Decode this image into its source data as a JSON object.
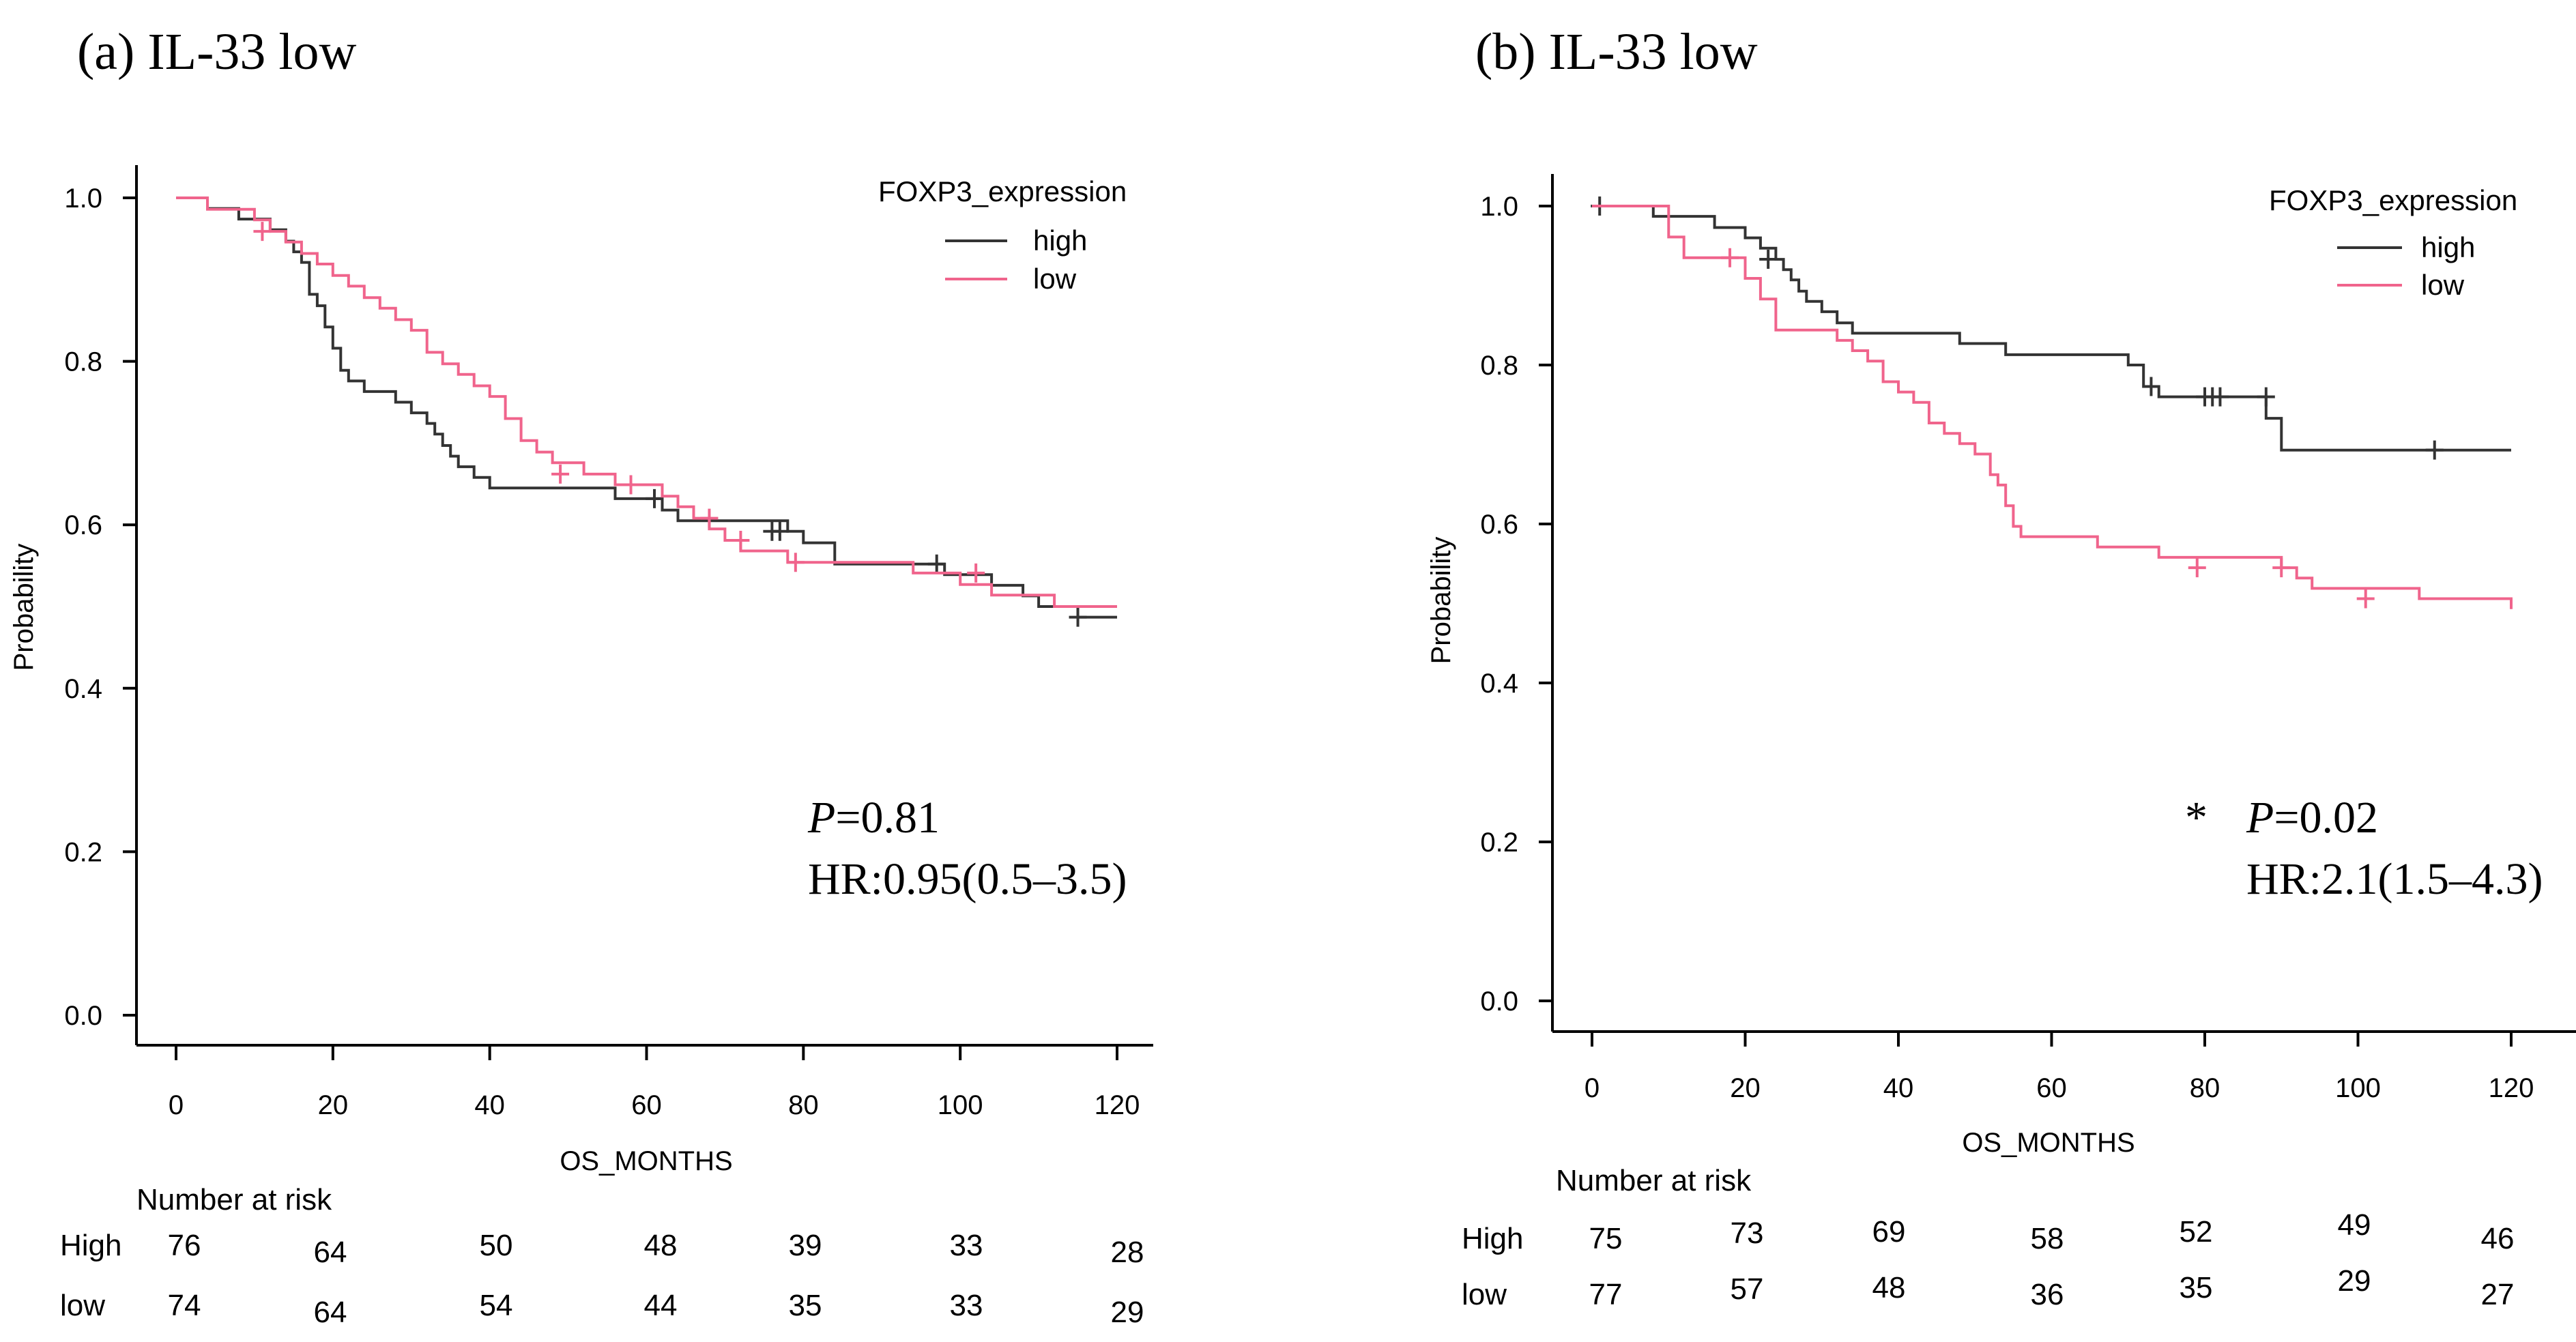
{
  "chart_data": [
    {
      "type": "line",
      "panel": "(a)",
      "title": "(a) IL-33 low",
      "xlabel": "OS_MONTHS",
      "ylabel": "Probability",
      "xlim": [
        0,
        120
      ],
      "ylim": [
        0,
        1.0
      ],
      "x_ticks": [
        "0",
        "20",
        "40",
        "60",
        "80",
        "100",
        "120"
      ],
      "y_ticks": [
        "0.0",
        "0.2",
        "0.4",
        "0.6",
        "0.8",
        "1.0"
      ],
      "legend": {
        "title": "FOXP3_expression",
        "position": "top-right",
        "entries": [
          "high",
          "low"
        ]
      },
      "colors": {
        "high": "#333333",
        "low": "#f0648c"
      },
      "series": [
        {
          "name": "high",
          "x": [
            0,
            4,
            8,
            12,
            14,
            15,
            16,
            17,
            18,
            19,
            20,
            21,
            22,
            24,
            28,
            30,
            32,
            33,
            34,
            35,
            36,
            38,
            40,
            44,
            48,
            56,
            62,
            64,
            76,
            78,
            80,
            84,
            97,
            98,
            104,
            108,
            110,
            115,
            120
          ],
          "y": [
            1.0,
            0.987,
            0.974,
            0.961,
            0.947,
            0.934,
            0.921,
            0.882,
            0.868,
            0.842,
            0.816,
            0.789,
            0.776,
            0.763,
            0.75,
            0.737,
            0.724,
            0.711,
            0.697,
            0.684,
            0.671,
            0.658,
            0.645,
            0.645,
            0.645,
            0.632,
            0.618,
            0.605,
            0.605,
            0.592,
            0.578,
            0.552,
            0.552,
            0.539,
            0.526,
            0.513,
            0.5,
            0.487,
            0.487
          ],
          "censor_x": [
            61,
            76,
            77,
            97,
            115
          ],
          "censor_y": [
            0.632,
            0.592,
            0.592,
            0.552,
            0.487
          ]
        },
        {
          "name": "low",
          "x": [
            0,
            4,
            10,
            12,
            14,
            16,
            18,
            20,
            22,
            24,
            26,
            28,
            30,
            32,
            34,
            36,
            38,
            40,
            42,
            44,
            46,
            48,
            52,
            56,
            60,
            62,
            64,
            66,
            68,
            70,
            72,
            74,
            78,
            82,
            90,
            94,
            100,
            104,
            108,
            112,
            120
          ],
          "y": [
            1.0,
            0.986,
            0.973,
            0.959,
            0.946,
            0.932,
            0.919,
            0.905,
            0.892,
            0.878,
            0.865,
            0.851,
            0.838,
            0.811,
            0.797,
            0.784,
            0.77,
            0.757,
            0.73,
            0.703,
            0.689,
            0.676,
            0.662,
            0.649,
            0.649,
            0.635,
            0.622,
            0.608,
            0.595,
            0.581,
            0.568,
            0.568,
            0.554,
            0.554,
            0.554,
            0.541,
            0.527,
            0.514,
            0.514,
            0.5,
            0.5
          ],
          "censor_x": [
            11,
            49,
            58,
            68,
            72,
            79,
            102
          ],
          "censor_y": [
            0.959,
            0.662,
            0.649,
            0.608,
            0.581,
            0.554,
            0.541
          ]
        }
      ],
      "annotation": {
        "p_label": "P",
        "p_value": "=0.81",
        "hr": "HR:0.95(0.5–3.5)"
      },
      "risk_table": {
        "title": "Number at risk",
        "rows": [
          {
            "label": "High",
            "values": [
              "76",
              "64",
              "50",
              "48",
              "39",
              "33",
              "28"
            ]
          },
          {
            "label": "low",
            "values": [
              "74",
              "64",
              "54",
              "44",
              "35",
              "33",
              "29"
            ]
          }
        ]
      }
    },
    {
      "type": "line",
      "panel": "(b)",
      "title": "(b) IL-33 low",
      "xlabel": "OS_MONTHS",
      "ylabel": "Probability",
      "xlim": [
        0,
        120
      ],
      "ylim": [
        0,
        1.0
      ],
      "x_ticks": [
        "0",
        "20",
        "40",
        "60",
        "80",
        "100",
        "120"
      ],
      "y_ticks": [
        "0.0",
        "0.2",
        "0.4",
        "0.6",
        "0.8",
        "1.0"
      ],
      "legend": {
        "title": "FOXP3_expression",
        "position": "top-right",
        "entries": [
          "high",
          "low"
        ]
      },
      "colors": {
        "high": "#333333",
        "low": "#f0648c"
      },
      "series": [
        {
          "name": "high",
          "x": [
            0,
            8,
            16,
            20,
            22,
            24,
            25,
            26,
            27,
            28,
            30,
            32,
            34,
            36,
            40,
            48,
            54,
            70,
            72,
            74,
            76,
            88,
            90,
            120
          ],
          "y": [
            1.0,
            0.987,
            0.973,
            0.96,
            0.947,
            0.933,
            0.92,
            0.907,
            0.893,
            0.88,
            0.867,
            0.853,
            0.84,
            0.84,
            0.84,
            0.827,
            0.813,
            0.8,
            0.773,
            0.76,
            0.76,
            0.733,
            0.693,
            0.693
          ],
          "censor_x": [
            1,
            23,
            73,
            80,
            81,
            82,
            88,
            110
          ],
          "censor_y": [
            1.0,
            0.933,
            0.773,
            0.76,
            0.76,
            0.76,
            0.76,
            0.693
          ]
        },
        {
          "name": "low",
          "x": [
            0,
            10,
            12,
            20,
            22,
            24,
            32,
            34,
            36,
            38,
            40,
            42,
            44,
            46,
            48,
            50,
            52,
            53,
            54,
            55,
            56,
            66,
            74,
            90,
            92,
            94,
            108,
            120
          ],
          "y": [
            1.0,
            0.961,
            0.935,
            0.909,
            0.883,
            0.844,
            0.831,
            0.818,
            0.805,
            0.779,
            0.766,
            0.753,
            0.727,
            0.714,
            0.701,
            0.688,
            0.662,
            0.649,
            0.623,
            0.597,
            0.584,
            0.571,
            0.558,
            0.545,
            0.532,
            0.519,
            0.506,
            0.493
          ],
          "censor_x": [
            18,
            79,
            90,
            101
          ],
          "censor_y": [
            0.935,
            0.545,
            0.545,
            0.506
          ]
        }
      ],
      "annotation": {
        "star": "*",
        "p_label": "P",
        "p_value": "=0.02",
        "hr": "HR:2.1(1.5–4.3)"
      },
      "risk_table": {
        "title": "Number at risk",
        "rows": [
          {
            "label": "High",
            "values": [
              "75",
              "73",
              "69",
              "58",
              "52",
              "49",
              "46"
            ]
          },
          {
            "label": "low",
            "values": [
              "77",
              "57",
              "48",
              "36",
              "35",
              "29",
              "27"
            ]
          }
        ]
      }
    }
  ]
}
